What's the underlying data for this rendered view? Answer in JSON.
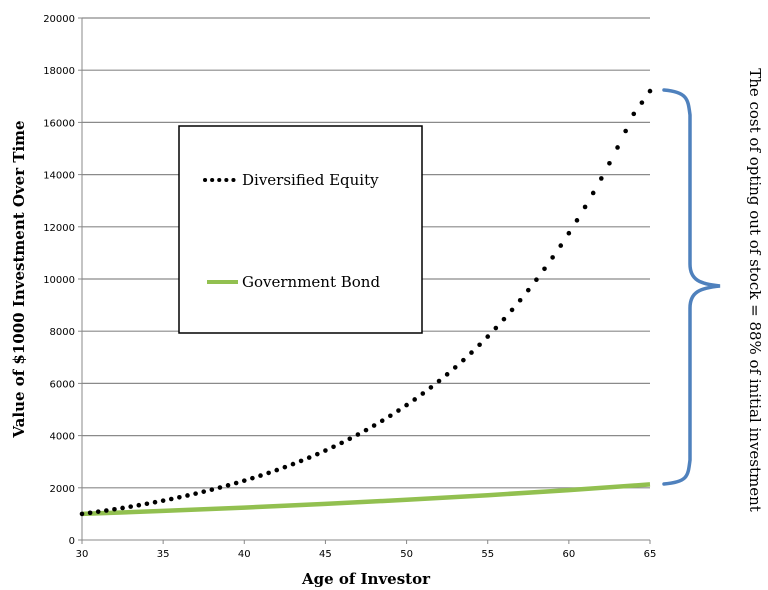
{
  "chart_data": {
    "type": "line",
    "title": "",
    "xlabel": "Age of Investor",
    "ylabel": "Value of $1000 Investment Over Time",
    "xlim": [
      30,
      65
    ],
    "ylim": [
      0,
      20000
    ],
    "x_ticks": [
      30,
      35,
      40,
      45,
      50,
      55,
      60,
      65
    ],
    "y_ticks": [
      0,
      2000,
      4000,
      6000,
      8000,
      10000,
      12000,
      14000,
      16000,
      18000,
      20000
    ],
    "grid": "horizontal",
    "legend_placement": "upper-left",
    "series": [
      {
        "name": "Diversified Equity",
        "style": "dotted",
        "color": "#000000",
        "start": 1000,
        "end": 17200,
        "x": [
          30,
          31,
          32,
          33,
          34,
          35,
          36,
          37,
          38,
          39,
          40,
          41,
          42,
          43,
          44,
          45,
          46,
          47,
          48,
          49,
          50,
          51,
          52,
          53,
          54,
          55,
          56,
          57,
          58,
          59,
          60,
          61,
          62,
          63,
          64,
          65
        ],
        "values": [
          1000,
          1085,
          1178,
          1279,
          1389,
          1508,
          1637,
          1777,
          1929,
          2094,
          2273,
          2468,
          2679,
          2908,
          3157,
          3428,
          3721,
          4040,
          4386,
          4761,
          5169,
          5611,
          6092,
          6613,
          7180,
          7794,
          8462,
          9186,
          9973,
          10827,
          11754,
          12761,
          13853,
          15040,
          16327,
          17200
        ]
      },
      {
        "name": "Government Bond",
        "style": "solid",
        "color": "#92c050",
        "start": 1000,
        "end": 2130,
        "x": [
          30,
          35,
          40,
          45,
          50,
          55,
          60,
          65
        ],
        "values": [
          1000,
          1114,
          1241,
          1383,
          1540,
          1716,
          1912,
          2130
        ]
      }
    ],
    "annotation": {
      "text": "The cost of opting out of stock =  88% of initial investment",
      "bracket_color": "#4f81bd"
    }
  }
}
